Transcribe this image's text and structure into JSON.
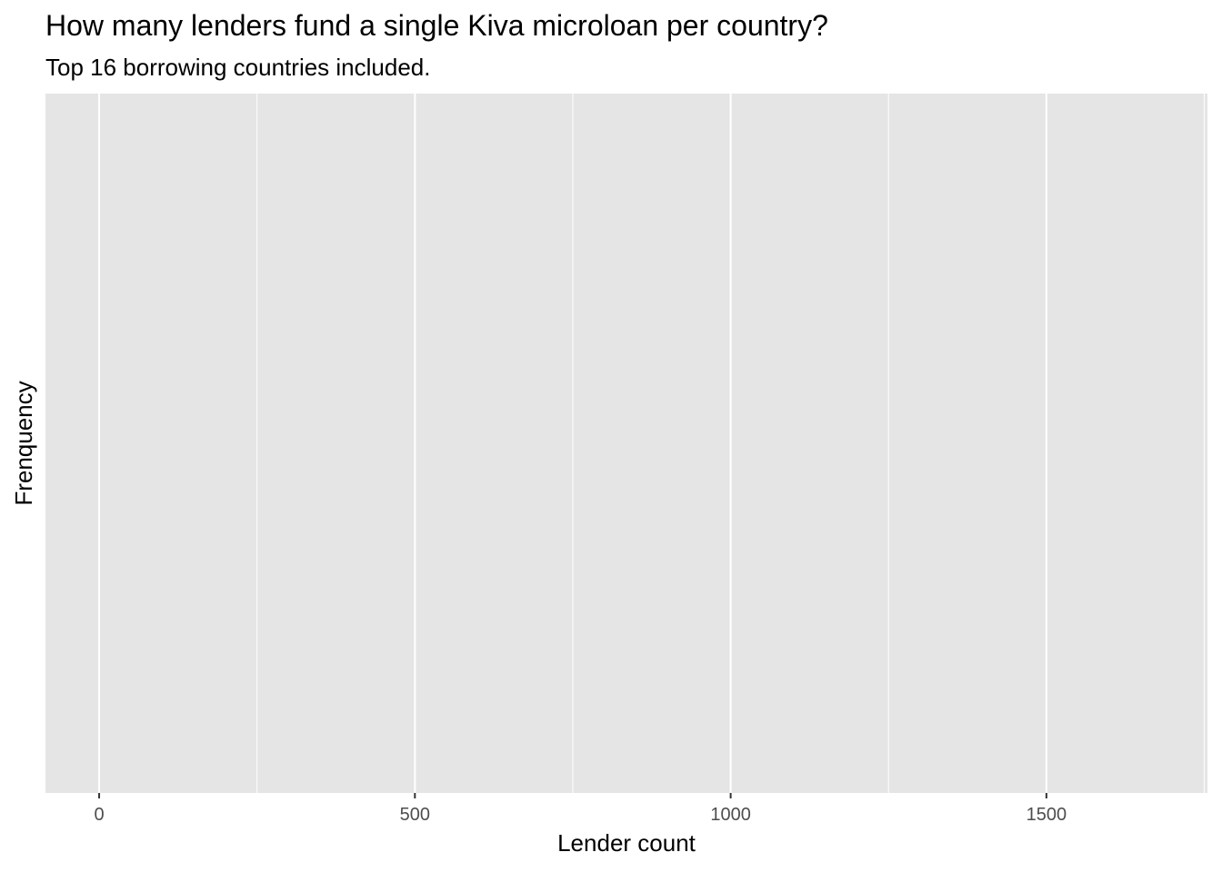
{
  "chart_data": {
    "type": "bar",
    "title": "How many lenders fund a single Kiva microloan per country?",
    "subtitle": "Top 16 borrowing countries included.",
    "xlabel": "Lender count",
    "ylabel": "Frenquency",
    "xlim": [
      -85,
      1755
    ],
    "x_major_ticks": [
      0,
      500,
      1000,
      1500
    ],
    "x_minor_gridlines": [
      250,
      750,
      1250,
      1750
    ],
    "x_tick_labels": [
      "0",
      "500",
      "1000",
      "1500"
    ],
    "y_tick_labels": [],
    "series": [],
    "grid": true,
    "legend": "none",
    "colors": {
      "panel_background": "#e5e5e5",
      "gridline": "#ffffff",
      "tick_text": "#4d4d4d",
      "axis_tick": "#333333"
    }
  }
}
